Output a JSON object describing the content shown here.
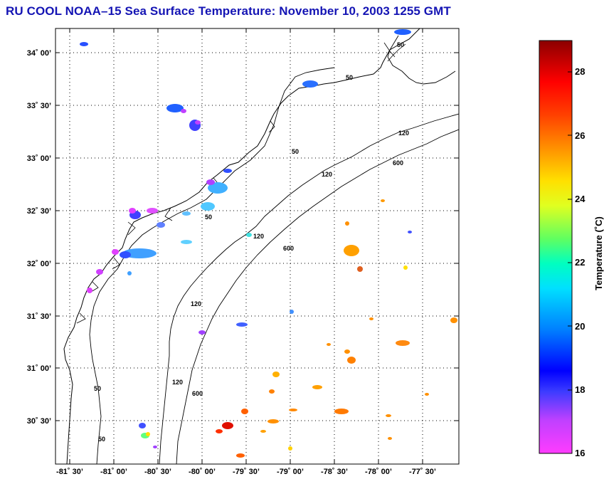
{
  "title": "RU COOL  NOAA–15  Sea Surface Temperature:  November 10, 2003 1255 GMT",
  "map": {
    "lat_labels": [
      "34˚ 00’",
      "33˚ 30’",
      "33˚ 00’",
      "32˚ 30’",
      "32˚ 00’",
      "31˚ 30’",
      "31˚ 00’",
      "30˚ 30’"
    ],
    "lon_labels": [
      "-81˚ 30’",
      "-81˚ 00’",
      "-80˚ 30’",
      "-80˚ 00’",
      "-79˚ 30’",
      "-79˚ 00’",
      "-78˚ 30’",
      "-78˚ 00’",
      "-77˚ 30’"
    ],
    "isobath_labels": [
      "50",
      "50",
      "50",
      "50",
      "50",
      "50",
      "120",
      "120",
      "120",
      "120",
      "120",
      "600",
      "600",
      "600"
    ]
  },
  "colorbar": {
    "label": "Temperature (˚C)",
    "ticks": [
      "28",
      "26",
      "24",
      "22",
      "20",
      "18",
      "16"
    ],
    "range": [
      16,
      29
    ]
  }
}
